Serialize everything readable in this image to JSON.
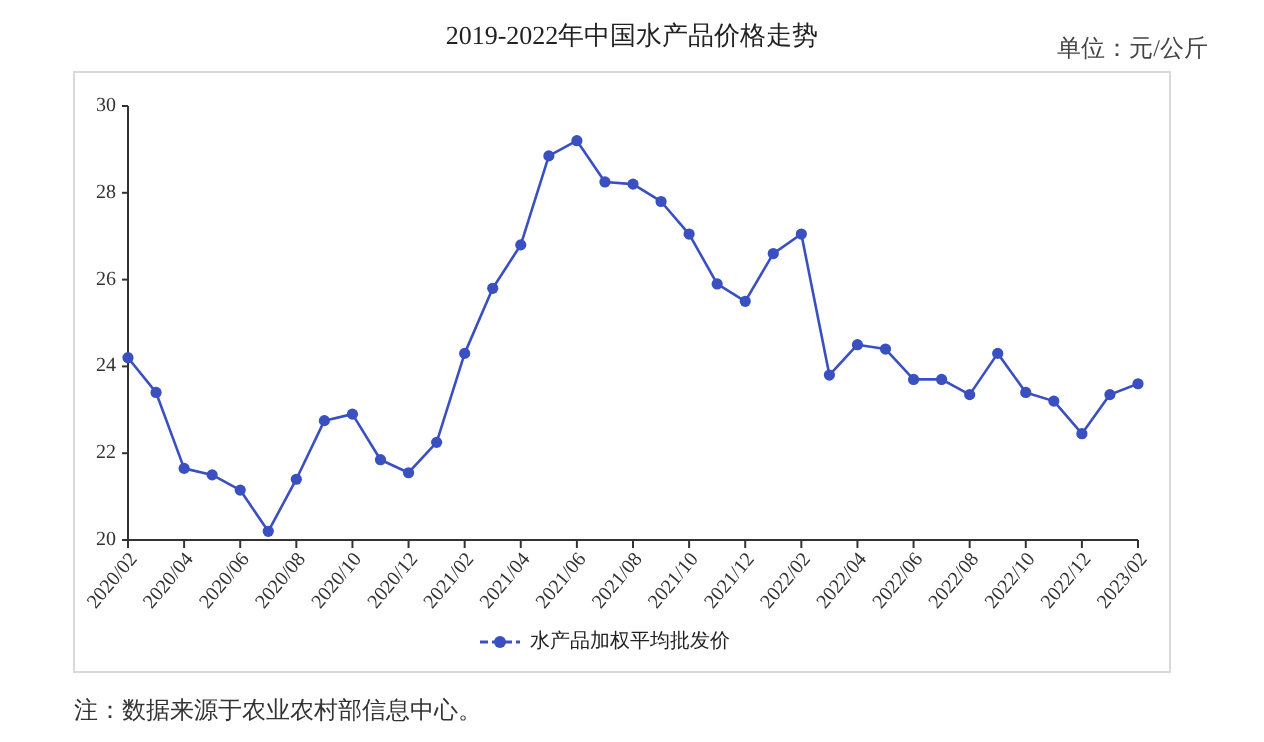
{
  "chart_data": {
    "type": "line",
    "title": "2019-2022年中国水产品价格走势",
    "annotations": [
      "单位：元/公斤",
      "注：数据来源于农业农村部信息中心。"
    ],
    "x": [
      "2020-02",
      "2020-03",
      "2020-04",
      "2020-05",
      "2020-06",
      "2020-07",
      "2020-08",
      "2020-09",
      "2020-10",
      "2020-11",
      "2020-12",
      "2021-01",
      "2021-02",
      "2021-03",
      "2021-04",
      "2021-05",
      "2021-06",
      "2021-07",
      "2021-08",
      "2021-09",
      "2021-10",
      "2021-11",
      "2021-12",
      "2022-01",
      "2022-02",
      "2022-03",
      "2022-04",
      "2022-05",
      "2022-06",
      "2022-07",
      "2022-08",
      "2022-09",
      "2022-10",
      "2022-11",
      "2022-12",
      "2023-01",
      "2023-02"
    ],
    "series": [
      {
        "name": "水产品加权平均批发价",
        "color": "#3a4fc0",
        "values": [
          24.2,
          23.4,
          21.65,
          21.5,
          21.15,
          20.2,
          21.4,
          22.75,
          22.9,
          21.85,
          21.55,
          22.25,
          24.3,
          25.8,
          26.8,
          28.85,
          29.2,
          28.25,
          28.2,
          27.8,
          27.05,
          25.9,
          25.5,
          26.6,
          27.05,
          23.8,
          24.5,
          24.4,
          23.7,
          23.7,
          23.35,
          24.3,
          23.4,
          23.2,
          22.45,
          23.35,
          23.6
        ]
      }
    ],
    "xlim": [
      "2020-02",
      "2023-02"
    ],
    "xticks": [
      {
        "value": "2020-02",
        "label": "2020/02"
      },
      {
        "value": "2020-04",
        "label": "2020/04"
      },
      {
        "value": "2020-06",
        "label": "2020/06"
      },
      {
        "value": "2020-08",
        "label": "2020/08"
      },
      {
        "value": "2020-10",
        "label": "2020/10"
      },
      {
        "value": "2020-12",
        "label": "2020/12"
      },
      {
        "value": "2021-02",
        "label": "2021/02"
      },
      {
        "value": "2021-04",
        "label": "2021/04"
      },
      {
        "value": "2021-06",
        "label": "2021/06"
      },
      {
        "value": "2021-08",
        "label": "2021/08"
      },
      {
        "value": "2021-10",
        "label": "2021/10"
      },
      {
        "value": "2021-12",
        "label": "2021/12"
      },
      {
        "value": "2022-02",
        "label": "2022/02"
      },
      {
        "value": "2022-04",
        "label": "2022/04"
      },
      {
        "value": "2022-06",
        "label": "2022/06"
      },
      {
        "value": "2022-08",
        "label": "2022/08"
      },
      {
        "value": "2022-10",
        "label": "2022/10"
      },
      {
        "value": "2022-12",
        "label": "2022/12"
      },
      {
        "value": "2023-02",
        "label": "2023/02"
      }
    ],
    "ylim": [
      20,
      30
    ],
    "yticks": [
      20,
      22,
      24,
      26,
      28,
      30
    ],
    "grid": false,
    "legend": "bottom",
    "marker": "circle",
    "line_style": "solid"
  }
}
